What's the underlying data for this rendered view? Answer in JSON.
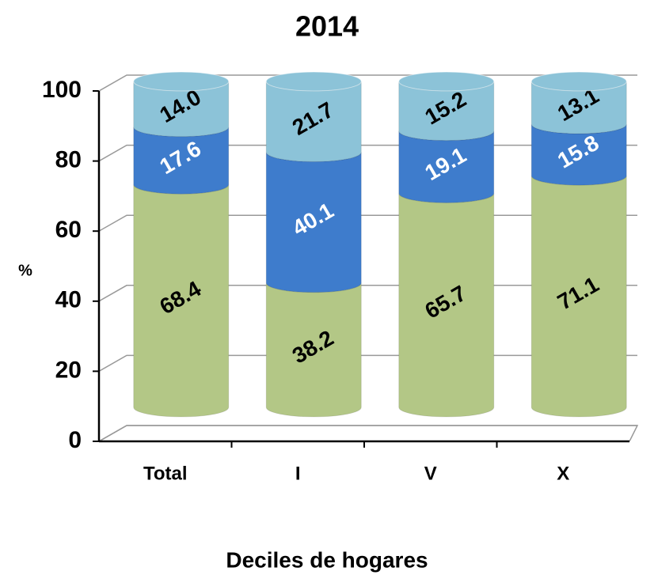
{
  "chart_data": {
    "type": "stacked-cylinder",
    "title": "2014",
    "ylabel": "%",
    "xlabel": "Deciles de hogares",
    "categories": [
      "Total",
      "I",
      "V",
      "X"
    ],
    "series": [
      {
        "color": "#b3c786",
        "label_color": "#000000",
        "values": [
          68.4,
          38.2,
          65.7,
          71.1
        ]
      },
      {
        "color": "#3e7ccc",
        "label_color": "#ffffff",
        "values": [
          17.6,
          40.1,
          19.1,
          15.8
        ]
      },
      {
        "color": "#8cc3d8",
        "label_color": "#000000",
        "values": [
          14,
          21.7,
          15.2,
          13.1
        ],
        "value_labels": [
          "14.0",
          "21.7",
          "15.2",
          "13.1"
        ]
      }
    ],
    "ylim": [
      0,
      100
    ],
    "yticks": [
      0,
      20,
      40,
      60,
      80,
      100
    ],
    "grid": true
  }
}
